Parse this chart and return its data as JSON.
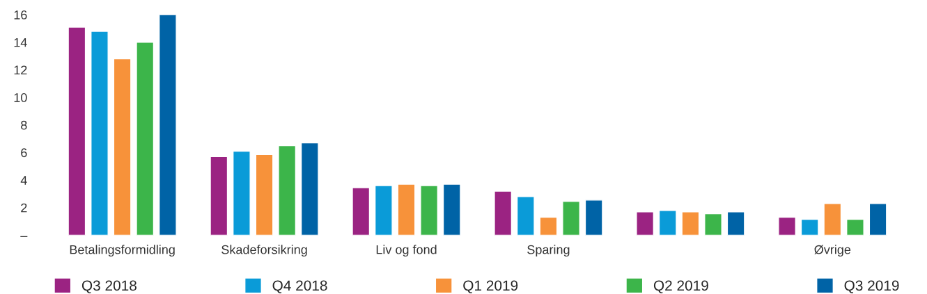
{
  "chart_data": {
    "type": "bar",
    "categories": [
      "Betalingsformidling",
      "Skadeforsikring",
      "Liv og fond",
      "Sparing",
      null,
      "Øvrige"
    ],
    "series": [
      {
        "name": "Q3 2018",
        "color": "#9b2382",
        "values": [
          15.1,
          5.7,
          3.45,
          3.2,
          1.7,
          1.3
        ]
      },
      {
        "name": "Q4 2018",
        "color": "#0a9bd8",
        "values": [
          14.8,
          6.1,
          3.6,
          2.8,
          1.8,
          1.15
        ]
      },
      {
        "name": "Q1 2019",
        "color": "#f7923a",
        "values": [
          12.8,
          5.85,
          3.7,
          1.3,
          1.7,
          2.3
        ]
      },
      {
        "name": "Q2 2019",
        "color": "#3cb54a",
        "values": [
          14.0,
          6.5,
          3.6,
          2.45,
          1.55,
          1.15
        ]
      },
      {
        "name": "Q3 2019",
        "color": "#0063a6",
        "values": [
          16.0,
          6.7,
          3.7,
          2.55,
          1.7,
          2.3
        ]
      }
    ],
    "ylim": [
      0,
      16
    ],
    "yticks": [
      {
        "value": 0,
        "label": "–"
      },
      2,
      4,
      6,
      8,
      10,
      12,
      14,
      16
    ],
    "grid": false,
    "legend": "bottom"
  }
}
